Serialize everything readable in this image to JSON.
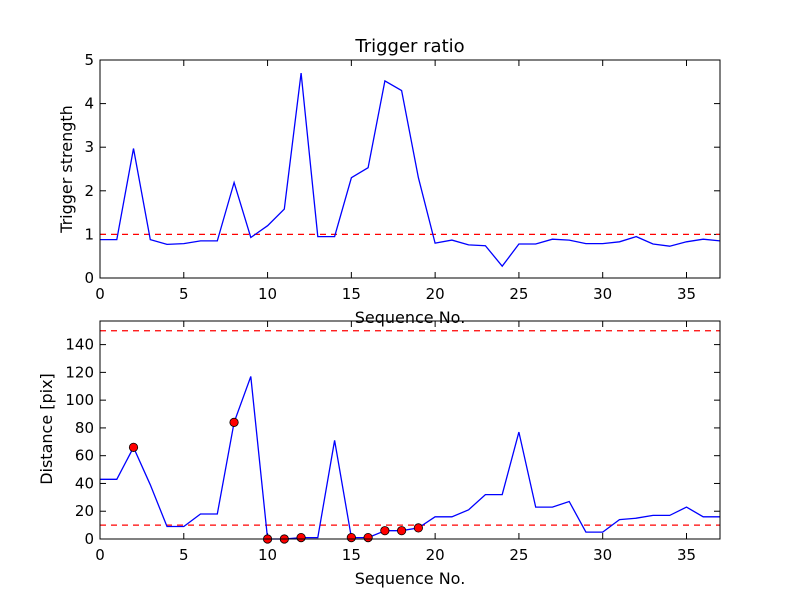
{
  "chart_data": [
    {
      "type": "line",
      "title": "Trigger ratio",
      "xlabel": "Sequence No.",
      "ylabel": "Trigger strength",
      "xlim": [
        0,
        37
      ],
      "ylim": [
        0,
        5
      ],
      "xticks": [
        0,
        5,
        10,
        15,
        20,
        25,
        30,
        35
      ],
      "yticks": [
        0,
        1,
        2,
        3,
        4,
        5
      ],
      "threshold_lines": [
        1.0
      ],
      "series": [
        {
          "name": "trigger strength",
          "color": "#0000ff",
          "x": [
            0,
            1,
            2,
            3,
            4,
            5,
            6,
            7,
            8,
            9,
            10,
            11,
            12,
            13,
            14,
            15,
            16,
            17,
            18,
            19,
            20,
            21,
            22,
            23,
            24,
            25,
            26,
            27,
            28,
            29,
            30,
            31,
            32,
            33,
            34,
            35,
            36,
            37
          ],
          "y": [
            0.88,
            0.88,
            2.97,
            0.88,
            0.77,
            0.79,
            0.85,
            0.85,
            2.19,
            0.93,
            1.2,
            1.58,
            4.7,
            0.95,
            0.95,
            2.3,
            2.53,
            4.52,
            4.3,
            2.3,
            0.8,
            0.87,
            0.76,
            0.74,
            0.27,
            0.78,
            0.78,
            0.89,
            0.87,
            0.79,
            0.79,
            0.83,
            0.95,
            0.78,
            0.73,
            0.83,
            0.89,
            0.85
          ]
        }
      ]
    },
    {
      "type": "line",
      "title": "",
      "xlabel": "Sequence No.",
      "ylabel": "Distance [pix]",
      "xlim": [
        0,
        37
      ],
      "ylim": [
        0,
        157
      ],
      "xticks": [
        0,
        5,
        10,
        15,
        20,
        25,
        30,
        35
      ],
      "yticks": [
        0,
        20,
        40,
        60,
        80,
        100,
        120,
        140
      ],
      "threshold_lines": [
        10,
        150
      ],
      "series": [
        {
          "name": "distance",
          "color": "#0000ff",
          "x": [
            0,
            1,
            2,
            3,
            4,
            5,
            6,
            7,
            8,
            9,
            10,
            11,
            12,
            13,
            14,
            15,
            16,
            17,
            18,
            19,
            20,
            21,
            22,
            23,
            24,
            25,
            26,
            27,
            28,
            29,
            30,
            31,
            32,
            33,
            34,
            35,
            36,
            37
          ],
          "y": [
            43,
            43,
            66,
            39,
            9,
            9,
            18,
            18,
            84,
            117,
            0,
            0,
            1,
            1,
            71,
            1,
            1,
            6,
            6,
            8,
            16,
            16,
            21,
            32,
            32,
            77,
            23,
            23,
            27,
            5,
            5,
            14,
            15,
            17,
            17,
            23,
            16,
            16
          ]
        }
      ],
      "markers": {
        "color": "#ff0000",
        "x": [
          2,
          8,
          10,
          11,
          12,
          15,
          16,
          17,
          18,
          19
        ],
        "y": [
          66,
          84,
          0,
          0,
          1,
          1,
          1,
          6,
          6,
          8
        ]
      }
    }
  ]
}
